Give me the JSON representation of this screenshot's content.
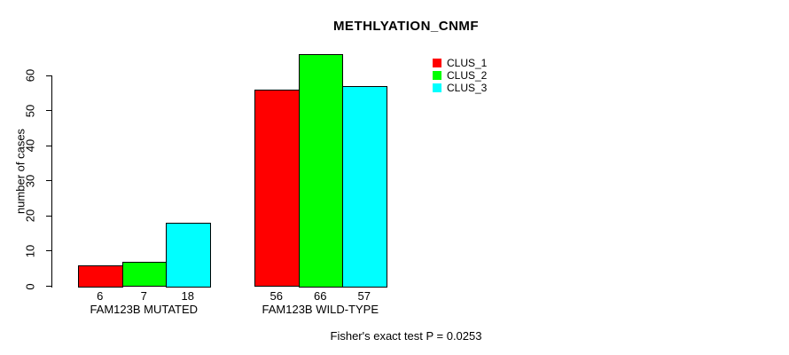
{
  "chart_data": {
    "type": "bar",
    "title": "METHLYATION_CNMF",
    "ylabel": "number of cases",
    "xlabel": "",
    "ylim": [
      0,
      60
    ],
    "yticks": [
      0,
      10,
      20,
      30,
      40,
      50,
      60
    ],
    "grid": false,
    "legend_position": "top-right-inside",
    "categories": [
      "FAM123B MUTATED",
      "FAM123B WILD-TYPE"
    ],
    "series": [
      {
        "name": "CLUS_1",
        "color": "#ff0000",
        "values": [
          6,
          56
        ]
      },
      {
        "name": "CLUS_2",
        "color": "#00ff00",
        "values": [
          7,
          66
        ]
      },
      {
        "name": "CLUS_3",
        "color": "#00ffff",
        "values": [
          18,
          57
        ]
      }
    ],
    "show_bar_value_labels": true,
    "axis_color": "#000000",
    "bar_border_color": "#000000",
    "annotation": "Fisher's exact test P = 0.0253"
  }
}
